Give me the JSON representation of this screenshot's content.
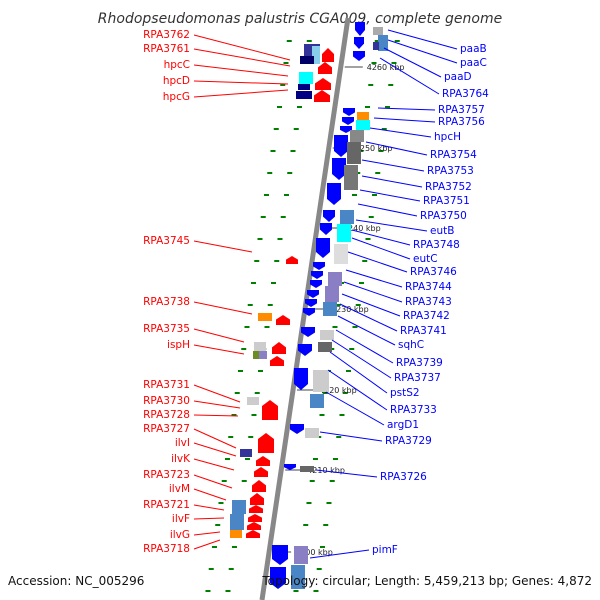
{
  "title": "Rhodopseudomonas palustris CGA009, complete genome",
  "accession": "Accession: NC_005296",
  "topology": "Topology: circular; Length: 5,459,213 bp; Genes: 4,872",
  "colors": {
    "forward": "#ff0000",
    "reverse": "#0000ff",
    "axis": "#888888",
    "ruler": "#008000"
  },
  "ticks": [
    {
      "label": "4260 kbp"
    },
    {
      "label": "4250 kbp"
    },
    {
      "label": "4240 kbp"
    },
    {
      "label": "4230 kbp"
    },
    {
      "label": "4220 kbp"
    },
    {
      "label": "4210 kbp"
    },
    {
      "label": "4200 kbp"
    }
  ],
  "left_genes": [
    "RPA3762",
    "RPA3761",
    "hpcC",
    "hpcD",
    "hpcG",
    "RPA3745",
    "RPA3738",
    "RPA3735",
    "ispH",
    "RPA3731",
    "RPA3730",
    "RPA3728",
    "RPA3727",
    "ilvI",
    "ilvK",
    "RPA3723",
    "ilvM",
    "RPA3721",
    "ilvF",
    "ilvG",
    "RPA3718"
  ],
  "right_genes": [
    "paaB",
    "paaC",
    "paaD",
    "RPA3764",
    "RPA3757",
    "RPA3756",
    "hpcH",
    "RPA3754",
    "RPA3753",
    "RPA3752",
    "RPA3751",
    "RPA3750",
    "eutB",
    "RPA3748",
    "eutC",
    "RPA3746",
    "RPA3744",
    "RPA3743",
    "RPA3742",
    "RPA3741",
    "sqhC",
    "RPA3739",
    "RPA3737",
    "pstS2",
    "RPA3733",
    "argD1",
    "RPA3729",
    "RPA3726",
    "pimF"
  ]
}
